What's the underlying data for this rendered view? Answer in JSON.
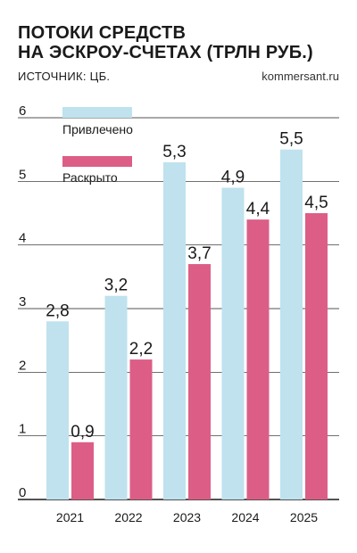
{
  "header": {
    "title_line1": "ПОТОКИ СРЕДСТВ",
    "title_line2": "НА ЭСКРОУ-СЧЕТАХ (ТРЛН РУБ.)",
    "source": "ИСТОЧНИК: ЦБ.",
    "brand": "kommersant.ru"
  },
  "colors": {
    "attracted": "#bfe2ee",
    "disclosed": "#dc5e86",
    "grid": "#1a1a1a"
  },
  "chart_data": {
    "type": "bar",
    "categories": [
      "2021",
      "2022",
      "2023",
      "2024",
      "2025"
    ],
    "series": [
      {
        "name": "Привлечено",
        "values": [
          2.8,
          3.2,
          5.3,
          4.9,
          5.5
        ],
        "labels": [
          "2,8",
          "3,2",
          "5,3",
          "4,9",
          "5,5"
        ]
      },
      {
        "name": "Раскрыто",
        "values": [
          0.9,
          2.2,
          3.7,
          4.4,
          4.5
        ],
        "labels": [
          "0,9",
          "2,2",
          "3,7",
          "4,4",
          "4,5"
        ]
      }
    ],
    "yticks": [
      "0",
      "1",
      "2",
      "3",
      "4",
      "5",
      "6"
    ],
    "ylim": [
      0,
      6
    ],
    "grid": true,
    "legend": "top-left"
  }
}
